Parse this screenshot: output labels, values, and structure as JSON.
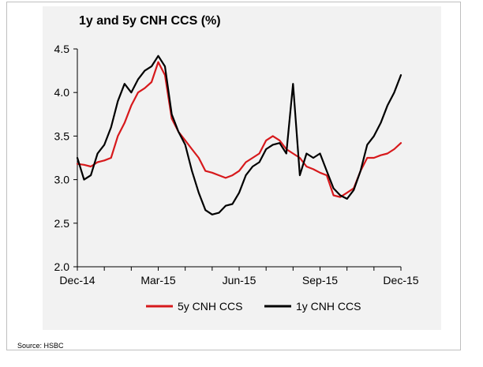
{
  "chart_data": {
    "type": "line",
    "title": "1y and 5y CNH CCS (%)",
    "xlabel": "",
    "ylabel": "",
    "x_tick_labels": [
      "Dec-14",
      "Mar-15",
      "Jun-15",
      "Sep-15",
      "Dec-15"
    ],
    "x_tick_positions": [
      0,
      3,
      6,
      9,
      12
    ],
    "xlim": [
      0,
      12
    ],
    "ylim": [
      2.0,
      4.5
    ],
    "y_ticks": [
      "2.0",
      "2.5",
      "3.0",
      "3.5",
      "4.0",
      "4.5"
    ],
    "grid": false,
    "legend_position": "bottom-center",
    "series": [
      {
        "name": "5y CNH CCS",
        "color": "#d7191c",
        "x": [
          0,
          0.25,
          0.5,
          0.75,
          1.0,
          1.25,
          1.5,
          1.75,
          2.0,
          2.25,
          2.5,
          2.75,
          3.0,
          3.25,
          3.5,
          3.75,
          4.0,
          4.25,
          4.5,
          4.75,
          5.0,
          5.25,
          5.5,
          5.75,
          6.0,
          6.25,
          6.5,
          6.75,
          7.0,
          7.25,
          7.5,
          7.75,
          8.0,
          8.25,
          8.5,
          8.75,
          9.0,
          9.25,
          9.5,
          9.75,
          10.0,
          10.25,
          10.5,
          10.75,
          11.0,
          11.25,
          11.5,
          11.75,
          12.0
        ],
        "values": [
          3.18,
          3.17,
          3.15,
          3.2,
          3.22,
          3.25,
          3.5,
          3.65,
          3.85,
          4.0,
          4.05,
          4.12,
          4.35,
          4.2,
          3.7,
          3.55,
          3.45,
          3.35,
          3.25,
          3.1,
          3.08,
          3.05,
          3.02,
          3.05,
          3.1,
          3.2,
          3.25,
          3.3,
          3.45,
          3.5,
          3.45,
          3.35,
          3.3,
          3.25,
          3.15,
          3.12,
          3.08,
          3.05,
          2.82,
          2.8,
          2.85,
          2.9,
          3.1,
          3.25,
          3.25,
          3.28,
          3.3,
          3.35,
          3.42
        ]
      },
      {
        "name": "1y CNH CCS",
        "color": "#000000",
        "x": [
          0,
          0.25,
          0.5,
          0.75,
          1.0,
          1.25,
          1.5,
          1.75,
          2.0,
          2.25,
          2.5,
          2.75,
          3.0,
          3.25,
          3.5,
          3.75,
          4.0,
          4.25,
          4.5,
          4.75,
          5.0,
          5.25,
          5.5,
          5.75,
          6.0,
          6.25,
          6.5,
          6.75,
          7.0,
          7.25,
          7.5,
          7.75,
          8.0,
          8.25,
          8.5,
          8.75,
          9.0,
          9.25,
          9.5,
          9.75,
          10.0,
          10.25,
          10.5,
          10.75,
          11.0,
          11.25,
          11.5,
          11.75,
          12.0
        ],
        "values": [
          3.25,
          3.0,
          3.05,
          3.3,
          3.4,
          3.6,
          3.9,
          4.1,
          4.0,
          4.15,
          4.25,
          4.3,
          4.42,
          4.3,
          3.75,
          3.55,
          3.4,
          3.1,
          2.85,
          2.65,
          2.6,
          2.62,
          2.7,
          2.72,
          2.85,
          3.05,
          3.15,
          3.2,
          3.35,
          3.4,
          3.42,
          3.3,
          4.1,
          3.05,
          3.3,
          3.25,
          3.3,
          3.1,
          2.9,
          2.82,
          2.78,
          2.88,
          3.1,
          3.4,
          3.5,
          3.65,
          3.85,
          4.0,
          4.2
        ]
      }
    ]
  },
  "source": "Source: HSBC"
}
